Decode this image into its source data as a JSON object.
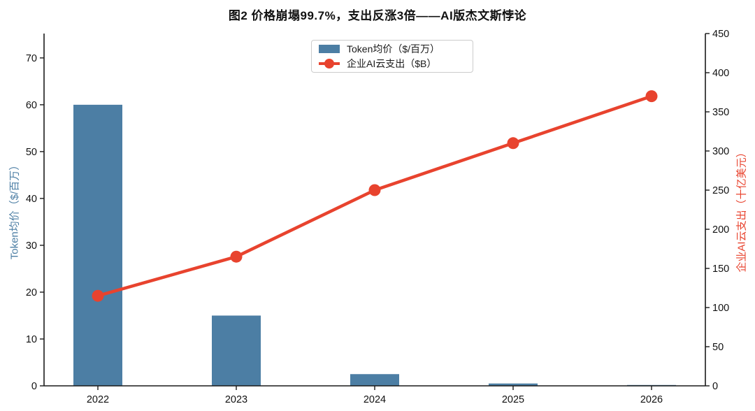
{
  "title": "图2 价格崩塌99.7%，支出反涨3倍——AI版杰文斯悖论",
  "legend": {
    "items": [
      {
        "label": "Token均价（$/百万）",
        "swatch": "bar-swatch-blue"
      },
      {
        "label": "企业AI云支出（$B）",
        "swatch": "line-swatch-red"
      }
    ],
    "position": "upper center",
    "border_color": "#cccccc"
  },
  "colors": {
    "bar": "#4C7EA4",
    "line": "#E8432E",
    "axis": "#1a1a1a",
    "tick_text": "#111111",
    "background": "#ffffff"
  },
  "chart_data": {
    "type": "bar",
    "subtype": "dual-axis combo (bar + line)",
    "title": "图2 价格崩塌99.7%，支出反涨3倍——AI版杰文斯悖论",
    "categories": [
      "2022",
      "2023",
      "2024",
      "2025",
      "2026"
    ],
    "series": [
      {
        "name": "Token均价（$/百万）",
        "type": "bar",
        "axis": "left",
        "color": "#4C7EA4",
        "values": [
          60,
          15,
          2.5,
          0.5,
          0.18
        ]
      },
      {
        "name": "企业AI云支出（$B）",
        "type": "line",
        "axis": "right",
        "color": "#E8432E",
        "marker": "circle",
        "values": [
          115,
          165,
          250,
          310,
          370
        ]
      }
    ],
    "left_axis": {
      "label": "Token均价（$/百万）",
      "color": "#4C7EA4",
      "ticks": [
        0,
        10,
        20,
        30,
        40,
        50,
        60,
        70
      ],
      "min": 0,
      "max": 75.2
    },
    "right_axis": {
      "label": "企业AI云支出（十亿美元）",
      "color": "#E8432E",
      "ticks": [
        0,
        50,
        100,
        150,
        200,
        250,
        300,
        350,
        400,
        450
      ],
      "min": 0,
      "max": 450
    },
    "x_axis": {
      "label": "",
      "tick_labels": [
        "2022",
        "2023",
        "2024",
        "2025",
        "2026"
      ]
    },
    "grid": false,
    "legend_position": "upper center"
  }
}
